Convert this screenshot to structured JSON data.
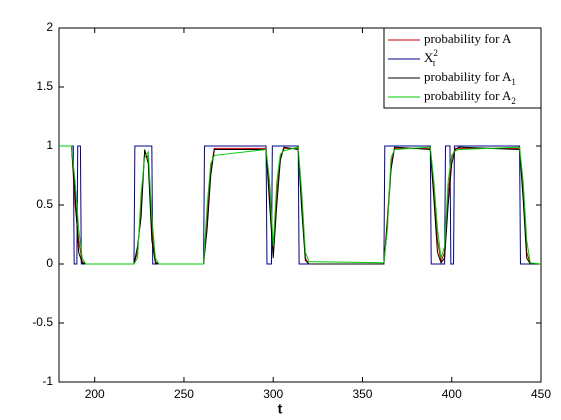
{
  "chart_data": {
    "type": "line",
    "xlabel": "t",
    "xlim": [
      180,
      450
    ],
    "ylim": [
      -1,
      2
    ],
    "xticks": [
      200,
      250,
      300,
      350,
      400,
      450
    ],
    "yticks": [
      -1,
      -0.5,
      0,
      0.5,
      1,
      1.5,
      2
    ],
    "legend": "top-right",
    "x": [
      180,
      187,
      189,
      191,
      193,
      195,
      222,
      224,
      226,
      228,
      230,
      232,
      234,
      236,
      261,
      263,
      265,
      267,
      296,
      298,
      300,
      302,
      304,
      306,
      314,
      316,
      318,
      320,
      362,
      364,
      366,
      368,
      388,
      390,
      392,
      394,
      396,
      398,
      400,
      402,
      404,
      438,
      440,
      442,
      444,
      450
    ],
    "series": [
      {
        "name": "probability for A",
        "color": "#cc0000",
        "values": [
          1,
          1,
          0.5,
          0.2,
          0.02,
          0,
          0,
          0.1,
          0.5,
          0.95,
          0.9,
          0.3,
          0.02,
          0,
          0,
          0.4,
          0.8,
          0.98,
          0.98,
          0.6,
          0.1,
          0.6,
          0.9,
          0.98,
          0.98,
          0.5,
          0.05,
          0,
          0,
          0.4,
          0.85,
          0.98,
          0.98,
          0.6,
          0.2,
          0.02,
          0.1,
          0.6,
          0.9,
          0.98,
          0.98,
          0.98,
          0.6,
          0.1,
          0,
          0
        ]
      },
      {
        "name": "X",
        "name_sub": "t",
        "name_sup": "2",
        "color": "#00008b",
        "x": [
          180,
          188,
          188.5,
          190,
          190.5,
          192,
          192.5,
          222,
          222.5,
          232,
          232.5,
          261,
          261.5,
          296,
          296.5,
          299,
          299.5,
          314,
          314.5,
          362,
          362.5,
          388,
          388.5,
          396,
          396.5,
          399,
          399.5,
          401,
          401.5,
          438,
          438.5,
          450
        ],
        "values": [
          1,
          1,
          0,
          0,
          1,
          1,
          0,
          0,
          1,
          1,
          0,
          0,
          1,
          1,
          0,
          0,
          1,
          1,
          0,
          0,
          1,
          1,
          0,
          0,
          1,
          1,
          0,
          0,
          1,
          1,
          0,
          0
        ]
      },
      {
        "name": "probability for A",
        "name_sub": "1",
        "color": "#000000",
        "values": [
          1,
          1,
          0.6,
          0.1,
          0.01,
          0,
          0,
          0.15,
          0.4,
          0.97,
          0.85,
          0.2,
          0.01,
          0,
          0,
          0.3,
          0.75,
          0.97,
          0.97,
          0.5,
          0.05,
          0.5,
          0.88,
          0.99,
          0.97,
          0.45,
          0.03,
          0,
          0,
          0.35,
          0.8,
          0.99,
          0.97,
          0.55,
          0.1,
          0.01,
          0.05,
          0.5,
          0.85,
          0.97,
          0.99,
          0.97,
          0.55,
          0.05,
          0,
          0
        ]
      },
      {
        "name": "probability for A",
        "name_sub": "2",
        "color": "#00cc00",
        "values": [
          1,
          1,
          0.7,
          0.3,
          0.05,
          0,
          0,
          0.05,
          0.6,
          0.9,
          0.95,
          0.4,
          0.05,
          0,
          0,
          0.5,
          0.85,
          0.92,
          0.97,
          0.7,
          0.15,
          0.7,
          0.93,
          0.96,
          0.99,
          0.6,
          0.1,
          0.02,
          0.01,
          0.3,
          0.9,
          0.97,
          0.99,
          0.7,
          0.3,
          0.05,
          0.15,
          0.7,
          0.92,
          0.96,
          0.97,
          0.99,
          0.7,
          0.2,
          0.01,
          0
        ]
      }
    ]
  }
}
